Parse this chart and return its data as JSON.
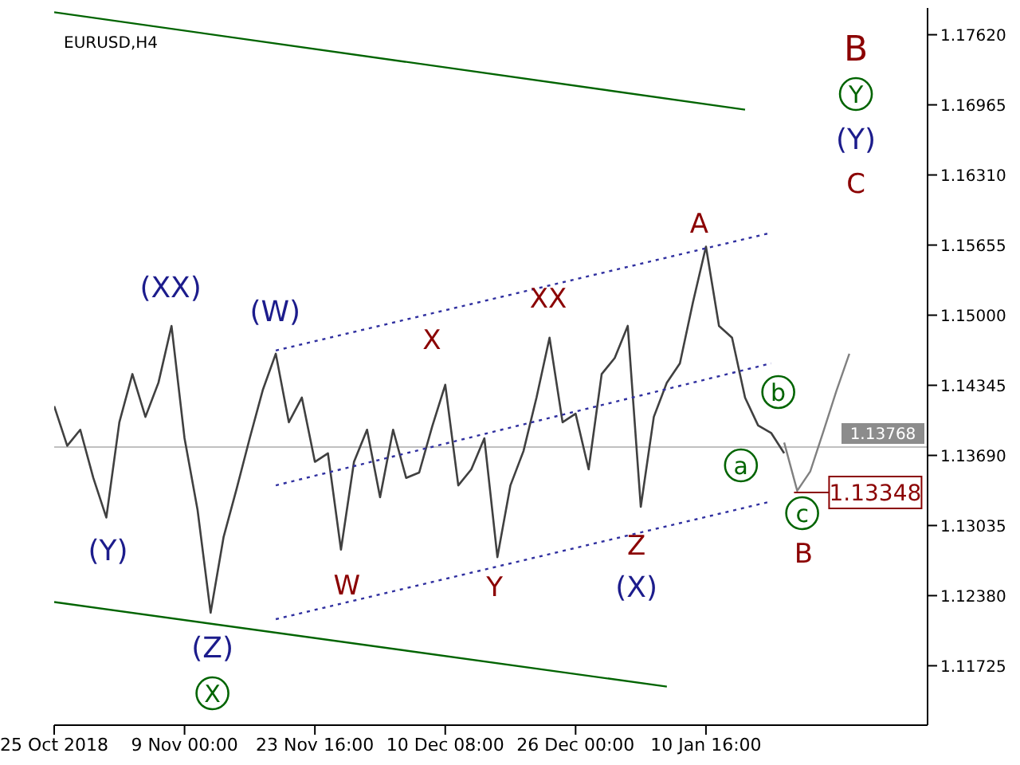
{
  "chart_data": {
    "type": "line",
    "title": "EURUSD,H4",
    "categories": [
      "25 Oct 2018",
      null,
      null,
      null,
      null,
      null,
      null,
      null,
      null,
      null,
      "9 Nov 00:00",
      null,
      null,
      null,
      null,
      null,
      null,
      null,
      null,
      null,
      "23 Nov 16:00",
      null,
      null,
      null,
      null,
      null,
      null,
      null,
      null,
      null,
      "10 Dec 08:00",
      null,
      null,
      null,
      null,
      null,
      null,
      null,
      null,
      null,
      "26 Dec 00:00",
      null,
      null,
      null,
      null,
      null,
      null,
      null,
      null,
      null,
      "10 Jan 16:00",
      null,
      null,
      null,
      null,
      null,
      null,
      null,
      null,
      null,
      null,
      null,
      null,
      null,
      null,
      null,
      null,
      null
    ],
    "series": [
      {
        "color": "#404040",
        "line_style": "solid",
        "values": [
          1.1415,
          1.1378,
          1.1393,
          1.1348,
          1.1311,
          1.14,
          1.1445,
          1.1405,
          1.1437,
          1.149,
          1.1385,
          1.1318,
          1.1222,
          1.1293,
          1.1338,
          1.1385,
          1.143,
          1.1464,
          1.14,
          1.1423,
          1.1363,
          1.1371,
          1.1281,
          1.1363,
          1.1393,
          1.133,
          1.1393,
          1.1348,
          1.1353,
          1.1396,
          1.1435,
          1.1341,
          1.1356,
          1.1385,
          1.1274,
          1.1341,
          1.1373,
          1.1423,
          1.1479,
          1.14,
          1.1408,
          1.1356,
          1.1445,
          1.146,
          1.149,
          1.1321,
          1.1405,
          1.1437,
          1.1455,
          1.1512,
          1.1564,
          1.149,
          1.1479,
          1.1423,
          1.1397,
          1.139,
          1.1371,
          null,
          null,
          null,
          null,
          null,
          null,
          null,
          null,
          null,
          null,
          null
        ]
      },
      {
        "color": "#808080",
        "line_style": "solid",
        "values": [
          null,
          null,
          null,
          null,
          null,
          null,
          null,
          null,
          null,
          null,
          null,
          null,
          null,
          null,
          null,
          null,
          null,
          null,
          null,
          null,
          null,
          null,
          null,
          null,
          null,
          null,
          null,
          null,
          null,
          null,
          null,
          null,
          null,
          null,
          null,
          null,
          null,
          null,
          null,
          null,
          null,
          null,
          null,
          null,
          null,
          null,
          null,
          null,
          null,
          null,
          null,
          null,
          null,
          null,
          null,
          null,
          1.1381,
          1.1336,
          1.1354,
          1.1391,
          1.1429,
          1.1464,
          null,
          null,
          null,
          null,
          null,
          null
        ]
      },
      {
        "color": "#006400",
        "line_style": "solid",
        "values": [
          1.1783,
          null,
          null,
          null,
          null,
          null,
          null,
          null,
          null,
          null,
          null,
          null,
          null,
          null,
          null,
          null,
          null,
          null,
          null,
          null,
          null,
          null,
          null,
          null,
          null,
          null,
          null,
          null,
          null,
          null,
          null,
          null,
          null,
          null,
          null,
          null,
          null,
          null,
          null,
          null,
          null,
          null,
          null,
          null,
          null,
          null,
          null,
          null,
          null,
          null,
          null,
          null,
          null,
          1.1692,
          null,
          null,
          null,
          null,
          null,
          null,
          null,
          null,
          null,
          null,
          null,
          null,
          null,
          null
        ]
      },
      {
        "color": "#006400",
        "line_style": "solid",
        "values": [
          1.1232,
          null,
          null,
          null,
          null,
          null,
          null,
          null,
          null,
          null,
          null,
          null,
          null,
          null,
          null,
          null,
          null,
          null,
          null,
          null,
          null,
          null,
          null,
          null,
          null,
          null,
          null,
          null,
          null,
          null,
          null,
          null,
          null,
          null,
          null,
          null,
          null,
          null,
          null,
          null,
          null,
          null,
          null,
          null,
          null,
          null,
          null,
          1.1153,
          null,
          null,
          null,
          null,
          null,
          null,
          null,
          null,
          null,
          null,
          null,
          null,
          null,
          null,
          null,
          null,
          null,
          null,
          null,
          null
        ]
      },
      {
        "color": "#3030a0",
        "line_style": "dotted",
        "values": [
          null,
          null,
          null,
          null,
          null,
          null,
          null,
          null,
          null,
          null,
          null,
          null,
          null,
          null,
          null,
          null,
          null,
          1.1467,
          null,
          null,
          null,
          null,
          null,
          null,
          null,
          null,
          null,
          null,
          null,
          null,
          null,
          null,
          null,
          null,
          null,
          null,
          null,
          null,
          null,
          null,
          null,
          null,
          null,
          null,
          null,
          null,
          null,
          null,
          null,
          null,
          null,
          null,
          null,
          null,
          null,
          1.1577,
          null,
          null,
          null,
          null,
          null,
          null,
          null,
          null,
          null,
          null,
          null,
          null
        ]
      },
      {
        "color": "#3030a0",
        "line_style": "dotted",
        "values": [
          null,
          null,
          null,
          null,
          null,
          null,
          null,
          null,
          null,
          null,
          null,
          null,
          null,
          null,
          null,
          null,
          null,
          1.1341,
          null,
          null,
          null,
          null,
          null,
          null,
          null,
          null,
          null,
          null,
          null,
          null,
          null,
          null,
          null,
          null,
          null,
          null,
          null,
          null,
          null,
          null,
          null,
          null,
          null,
          null,
          null,
          null,
          null,
          null,
          null,
          null,
          null,
          null,
          null,
          null,
          null,
          1.1455,
          null,
          null,
          null,
          null,
          null,
          null,
          null,
          null,
          null,
          null,
          null,
          null
        ]
      },
      {
        "color": "#3030a0",
        "line_style": "dotted",
        "values": [
          null,
          null,
          null,
          null,
          null,
          null,
          null,
          null,
          null,
          null,
          null,
          null,
          null,
          null,
          null,
          null,
          null,
          1.1216,
          null,
          null,
          null,
          null,
          null,
          null,
          null,
          null,
          null,
          null,
          null,
          null,
          null,
          null,
          null,
          null,
          null,
          null,
          null,
          null,
          null,
          null,
          null,
          null,
          null,
          null,
          null,
          null,
          null,
          null,
          null,
          null,
          null,
          null,
          null,
          null,
          null,
          1.1326,
          null,
          null,
          null,
          null,
          null,
          null,
          null,
          null,
          null,
          null,
          null,
          null
        ]
      }
    ],
    "ylim": [
      1.1117,
      1.1787
    ],
    "yticks": [
      {
        "value": 1.1762,
        "label": "1.17620"
      },
      {
        "value": 1.16965,
        "label": "1.16965"
      },
      {
        "value": 1.1631,
        "label": "1.16310"
      },
      {
        "value": 1.15655,
        "label": "1.15655"
      },
      {
        "value": 1.15,
        "label": "1.15000"
      },
      {
        "value": 1.14345,
        "label": "1.14345"
      },
      {
        "value": 1.1369,
        "label": "1.13690"
      },
      {
        "value": 1.13035,
        "label": "1.13035"
      },
      {
        "value": 1.1238,
        "label": "1.12380"
      },
      {
        "value": 1.11725,
        "label": "1.11725"
      }
    ],
    "ref_lines": [
      {
        "axis": "y",
        "value": 1.13768,
        "label": "1.13768",
        "color": "#c0c0c0"
      }
    ],
    "marker": "none",
    "annotations": [
      "(XX)",
      "(W)",
      "(Y)",
      "(Z)",
      "X",
      "W",
      "X",
      "XX",
      "Y",
      "Z",
      "(X)",
      "A",
      "a",
      "b",
      "c",
      "B",
      "B",
      "Y",
      "(Y)",
      "C",
      "1.13348"
    ]
  }
}
